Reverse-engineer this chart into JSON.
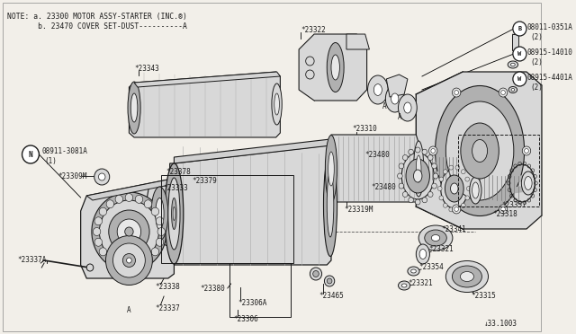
{
  "bg_color": "#f2efe9",
  "line_color": "#1a1a1a",
  "text_color": "#1a1a1a",
  "fig_width": 6.4,
  "fig_height": 3.72,
  "dpi": 100,
  "note_line1": "NOTE: a. 23300 MOTOR ASSY-STARTER (INC.®)",
  "note_line2": "       b. 23470 COVER SET-DUST----------A",
  "diagram_id": "↓33.1003"
}
